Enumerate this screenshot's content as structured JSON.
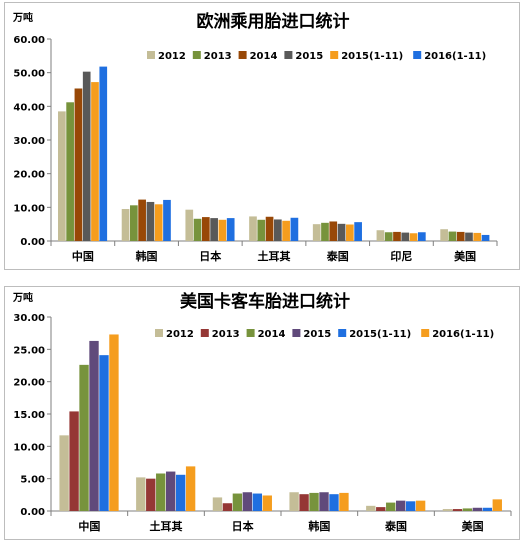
{
  "chart_data": [
    {
      "type": "bar",
      "title": "欧洲乘用胎进口统计",
      "ylabel": "万吨",
      "ylim": [
        0,
        60
      ],
      "yticks": [
        "0.00",
        "10.00",
        "20.00",
        "30.00",
        "40.00",
        "50.00",
        "60.00"
      ],
      "categories": [
        "中国",
        "韩国",
        "日本",
        "土耳其",
        "泰国",
        "印尼",
        "美国"
      ],
      "legend_position": "top",
      "series": [
        {
          "name": "2012",
          "color": "#c4bd97",
          "values": [
            38.5,
            9.5,
            9.3,
            7.3,
            5.0,
            3.2,
            3.5
          ]
        },
        {
          "name": "2013",
          "color": "#77933c",
          "values": [
            41.2,
            10.6,
            6.6,
            6.3,
            5.4,
            2.6,
            2.8
          ]
        },
        {
          "name": "2014",
          "color": "#984807",
          "values": [
            45.3,
            12.3,
            7.1,
            7.2,
            5.8,
            2.7,
            2.7
          ]
        },
        {
          "name": "2015",
          "color": "#595959",
          "values": [
            50.3,
            11.6,
            6.8,
            6.4,
            5.1,
            2.5,
            2.5
          ]
        },
        {
          "name": "2015(1-11)",
          "color": "#f59d1e",
          "values": [
            47.2,
            10.9,
            6.3,
            6.0,
            4.9,
            2.3,
            2.4
          ]
        },
        {
          "name": "2016(1-11)",
          "color": "#1f6fe0",
          "values": [
            51.8,
            12.2,
            6.8,
            6.9,
            5.6,
            2.6,
            1.8
          ]
        }
      ]
    },
    {
      "type": "bar",
      "title": "美国卡客车胎进口统计",
      "ylabel": "万吨",
      "ylim": [
        0,
        30
      ],
      "yticks": [
        "0.00",
        "5.00",
        "10.00",
        "15.00",
        "20.00",
        "25.00",
        "30.00"
      ],
      "categories": [
        "中国",
        "土耳其",
        "日本",
        "韩国",
        "泰国",
        "美国"
      ],
      "legend_position": "top",
      "series": [
        {
          "name": "2012",
          "color": "#c4bd97",
          "values": [
            11.7,
            5.2,
            2.1,
            2.9,
            0.8,
            0.3
          ]
        },
        {
          "name": "2013",
          "color": "#953735",
          "values": [
            15.4,
            5.0,
            1.2,
            2.6,
            0.6,
            0.3
          ]
        },
        {
          "name": "2014",
          "color": "#77933c",
          "values": [
            22.6,
            5.8,
            2.7,
            2.8,
            1.3,
            0.4
          ]
        },
        {
          "name": "2015",
          "color": "#604a7b",
          "values": [
            26.3,
            6.1,
            2.9,
            2.9,
            1.6,
            0.5
          ]
        },
        {
          "name": "2015(1-11)",
          "color": "#1f6fe0",
          "values": [
            24.1,
            5.6,
            2.7,
            2.6,
            1.5,
            0.5
          ]
        },
        {
          "name": "2016(1-11)",
          "color": "#f59d1e",
          "values": [
            27.3,
            6.9,
            2.4,
            2.8,
            1.6,
            1.8
          ]
        }
      ]
    }
  ]
}
